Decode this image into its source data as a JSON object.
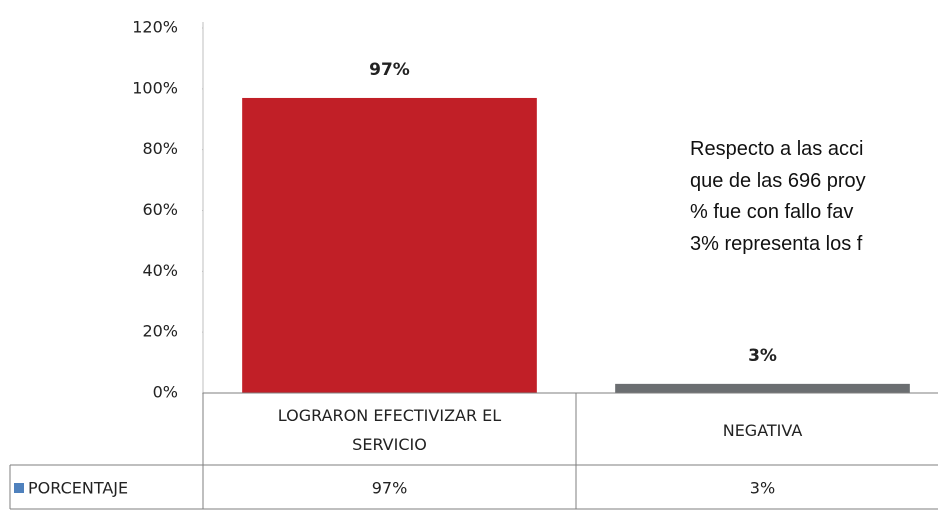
{
  "chart_data": {
    "type": "bar",
    "categories": [
      "LOGRARON EFECTIVIZAR EL SERVICIO",
      "NEGATIVA"
    ],
    "series": [
      {
        "name": "PORCENTAJE",
        "colors": [
          "#c11f27",
          "#6b6e71"
        ],
        "values": [
          97,
          3
        ],
        "value_labels": [
          "97%",
          "3%"
        ]
      }
    ],
    "legend_color": "#4f81bd",
    "ylim": [
      0,
      120
    ],
    "yticks": [
      {
        "value": 0,
        "label": "0%"
      },
      {
        "value": 20,
        "label": "20%"
      },
      {
        "value": 40,
        "label": "40%"
      },
      {
        "value": 60,
        "label": "60%"
      },
      {
        "value": 80,
        "label": "80%"
      },
      {
        "value": 100,
        "label": "100%"
      },
      {
        "value": 120,
        "label": "120%"
      }
    ],
    "data_table": true,
    "annotation": [
      "Respecto a las acci",
      "que de las 696 proy",
      "% fue con fallo fav",
      "3% representa los f"
    ]
  }
}
